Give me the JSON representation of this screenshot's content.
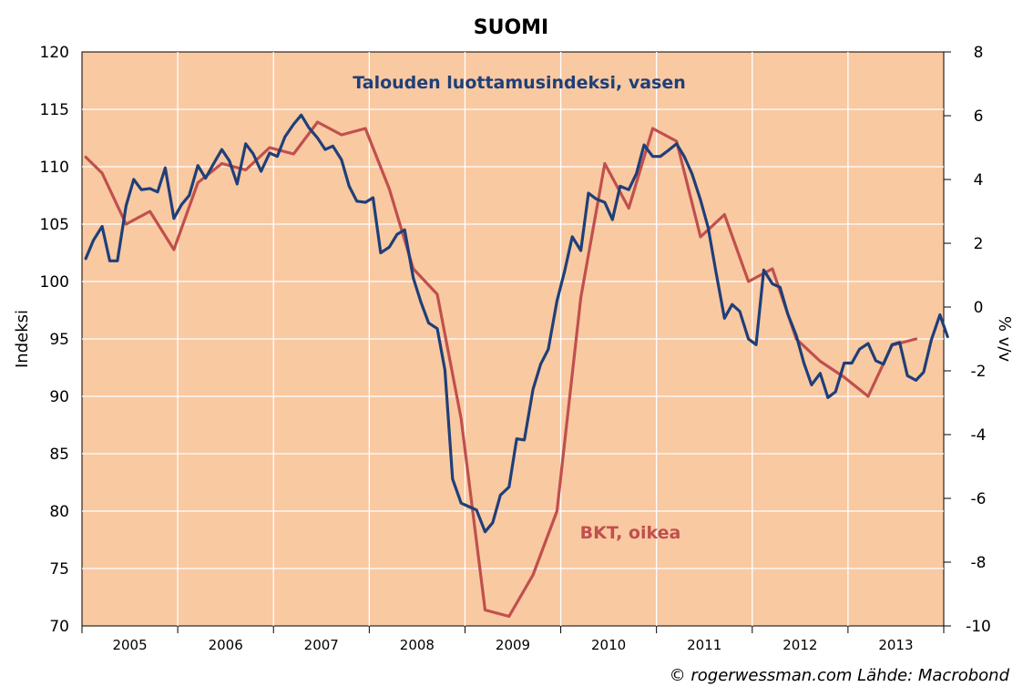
{
  "chart_data": {
    "type": "line",
    "title": "SUOMI",
    "ylabel_left": "Indeksi",
    "ylabel_right": "% v/v",
    "left_ylim": [
      70,
      120
    ],
    "left_yticks": [
      "70",
      "75",
      "80",
      "85",
      "90",
      "95",
      "100",
      "105",
      "110",
      "115",
      "120"
    ],
    "right_ylim": [
      -10,
      8
    ],
    "right_yticks": [
      "-10",
      "-8",
      "-6",
      "-4",
      "-2",
      "0",
      "2",
      "4",
      "6",
      "8"
    ],
    "xlim": [
      2005.0,
      2014.0
    ],
    "xticks": [
      "2005",
      "2006",
      "2007",
      "2008",
      "2009",
      "2010",
      "2011",
      "2012",
      "2013"
    ],
    "grid": true,
    "background_color": "#f9c9a2",
    "series": [
      {
        "name": "Talouden luottamusindeksi, vasen",
        "axis": "left",
        "color": "#1f3f78",
        "x": [
          2005.04,
          2005.12,
          2005.21,
          2005.29,
          2005.37,
          2005.46,
          2005.54,
          2005.62,
          2005.71,
          2005.79,
          2005.87,
          2005.96,
          2006.04,
          2006.12,
          2006.21,
          2006.29,
          2006.37,
          2006.46,
          2006.54,
          2006.62,
          2006.71,
          2006.79,
          2006.87,
          2006.96,
          2007.04,
          2007.12,
          2007.21,
          2007.29,
          2007.37,
          2007.46,
          2007.54,
          2007.62,
          2007.71,
          2007.79,
          2007.87,
          2007.96,
          2008.04,
          2008.12,
          2008.21,
          2008.29,
          2008.37,
          2008.46,
          2008.54,
          2008.62,
          2008.71,
          2008.79,
          2008.87,
          2008.96,
          2009.04,
          2009.12,
          2009.21,
          2009.29,
          2009.37,
          2009.46,
          2009.54,
          2009.62,
          2009.71,
          2009.79,
          2009.87,
          2009.96,
          2010.04,
          2010.12,
          2010.21,
          2010.29,
          2010.37,
          2010.46,
          2010.54,
          2010.62,
          2010.71,
          2010.79,
          2010.87,
          2010.96,
          2011.04,
          2011.12,
          2011.21,
          2011.29,
          2011.37,
          2011.46,
          2011.54,
          2011.62,
          2011.71,
          2011.79,
          2011.87,
          2011.96,
          2012.04,
          2012.12,
          2012.21,
          2012.29,
          2012.37,
          2012.46,
          2012.54,
          2012.62,
          2012.71,
          2012.79,
          2012.87,
          2012.96,
          2013.04,
          2013.12,
          2013.21,
          2013.29,
          2013.37,
          2013.46,
          2013.54,
          2013.62,
          2013.71,
          2013.79,
          2013.87,
          2013.96,
          2014.04
        ],
        "values": [
          102.0,
          103.6,
          104.8,
          101.8,
          101.8,
          106.6,
          108.9,
          108.0,
          108.1,
          107.8,
          109.9,
          105.5,
          106.7,
          107.5,
          110.1,
          109.0,
          110.2,
          111.5,
          110.5,
          108.5,
          112.0,
          111.1,
          109.6,
          111.2,
          110.9,
          112.6,
          113.7,
          114.5,
          113.4,
          112.5,
          111.5,
          111.8,
          110.6,
          108.3,
          107.0,
          106.9,
          107.3,
          102.5,
          103.0,
          104.1,
          104.5,
          100.3,
          98.2,
          96.4,
          95.9,
          92.3,
          82.8,
          80.7,
          80.4,
          80.1,
          78.2,
          79.0,
          81.4,
          82.1,
          86.3,
          86.2,
          90.6,
          92.8,
          94.1,
          98.3,
          100.9,
          103.9,
          102.7,
          107.7,
          107.2,
          106.9,
          105.4,
          108.3,
          108.0,
          109.4,
          111.9,
          110.9,
          110.9,
          111.4,
          112.0,
          110.9,
          109.4,
          107.1,
          104.7,
          100.9,
          96.8,
          98.0,
          97.4,
          95.0,
          94.5,
          101.0,
          99.8,
          99.5,
          97.2,
          95.3,
          92.9,
          91.0,
          92.0,
          89.9,
          90.4,
          92.9,
          92.9,
          94.1,
          94.6,
          93.1,
          92.8,
          94.5,
          94.7,
          91.8,
          91.4,
          92.1,
          94.9,
          97.1,
          95.2
        ]
      },
      {
        "name": "BKT, oikea",
        "axis": "right",
        "color": "#c0504d",
        "x": [
          2005.04,
          2005.21,
          2005.46,
          2005.71,
          2005.96,
          2006.21,
          2006.46,
          2006.71,
          2006.96,
          2007.21,
          2007.46,
          2007.71,
          2007.96,
          2008.21,
          2008.46,
          2008.71,
          2008.96,
          2009.21,
          2009.46,
          2009.71,
          2009.96,
          2010.21,
          2010.46,
          2010.71,
          2010.96,
          2011.21,
          2011.46,
          2011.71,
          2011.96,
          2012.21,
          2012.46,
          2012.71,
          2012.96,
          2013.21,
          2013.46,
          2013.71
        ],
        "values": [
          4.7,
          4.2,
          2.6,
          3.0,
          1.8,
          3.9,
          4.5,
          4.3,
          5.0,
          4.8,
          5.8,
          5.4,
          5.6,
          3.7,
          1.2,
          0.4,
          -3.5,
          -9.5,
          -9.7,
          -8.4,
          -6.4,
          0.3,
          4.5,
          3.1,
          5.6,
          5.2,
          2.2,
          2.9,
          0.8,
          1.2,
          -1.0,
          -1.7,
          -2.2,
          -2.8,
          -1.2,
          -1.0
        ]
      }
    ],
    "annotations": [
      {
        "text": "Talouden luottamusindeksi, vasen",
        "color": "#1f3f78"
      },
      {
        "text": "BKT, oikea",
        "color": "#c0504d"
      }
    ],
    "credit": "© rogerwessman.com Lähde: Macrobond"
  }
}
